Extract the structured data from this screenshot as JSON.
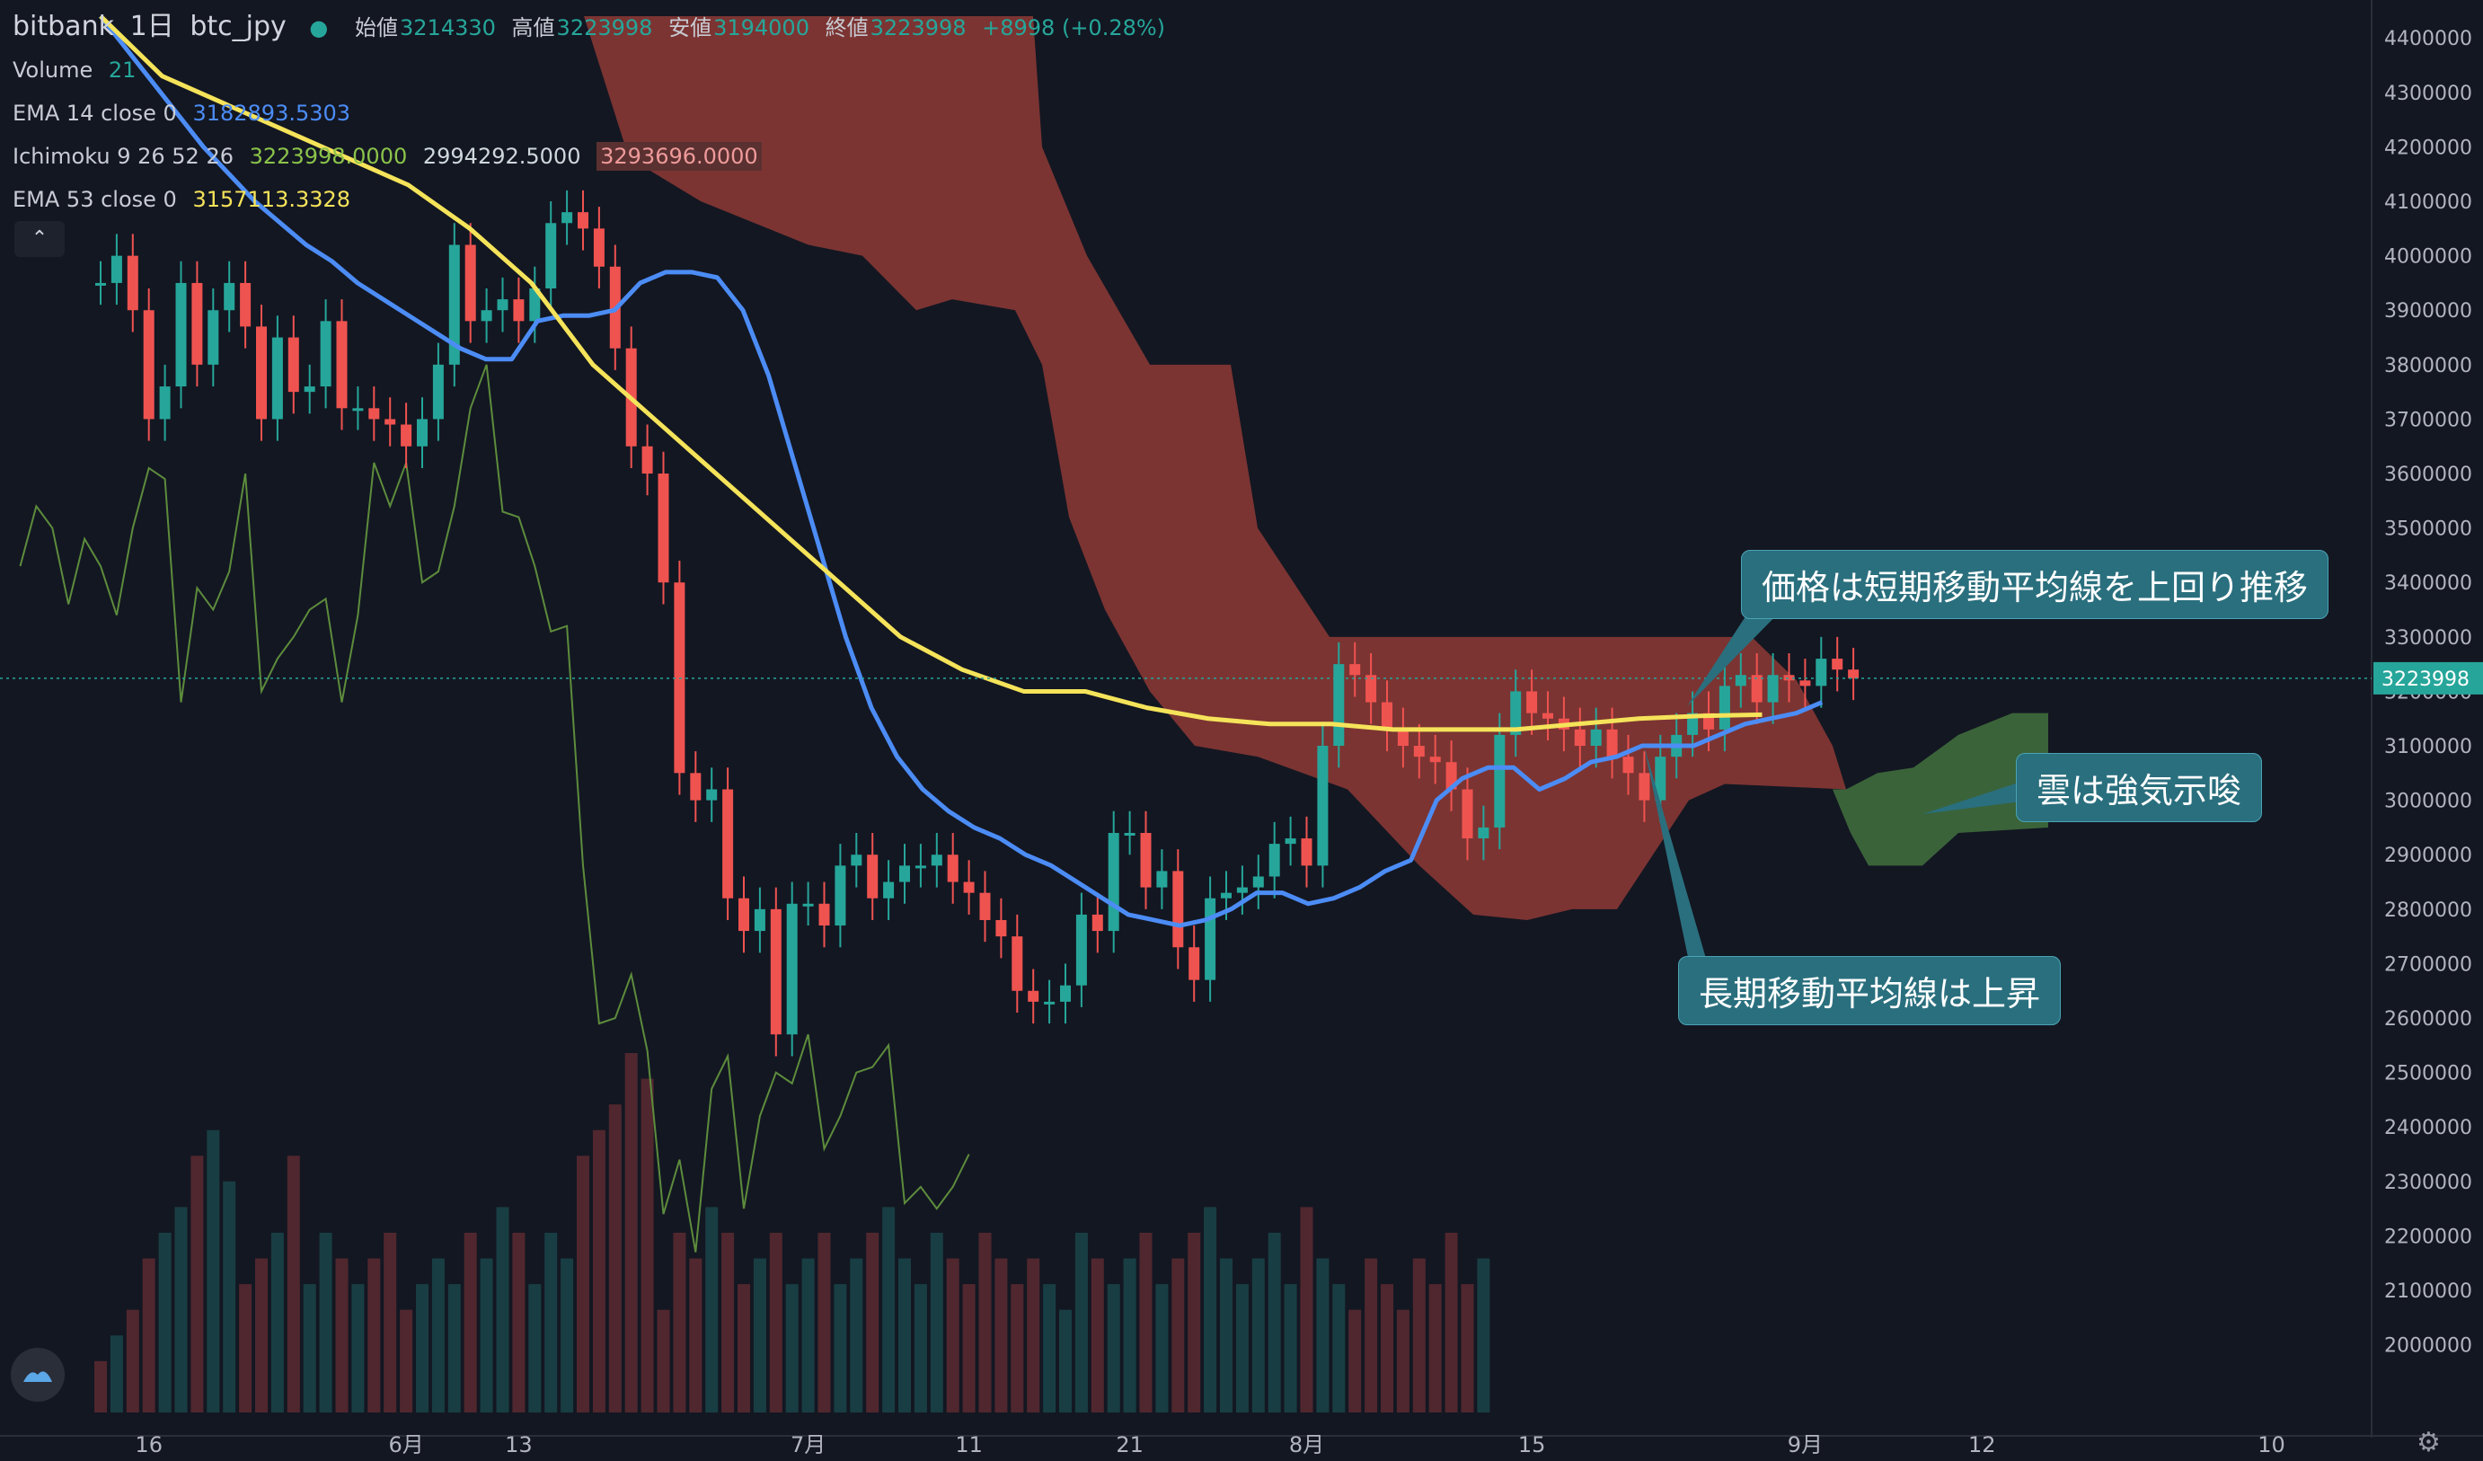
{
  "header": {
    "exchange": "bitbank",
    "interval": "1日",
    "symbol": "btc_jpy",
    "ohlc": {
      "open_label": "始値",
      "open": "3214330",
      "high_label": "高値",
      "high": "3223998",
      "low_label": "安値",
      "low": "3194000",
      "close_label": "終値",
      "close": "3223998",
      "change": "+8998 (+0.28%)"
    }
  },
  "indicators": {
    "volume": {
      "label": "Volume",
      "value": "21"
    },
    "ema14": {
      "label": "EMA 14 close 0",
      "value": "3182893.5303"
    },
    "ichimoku": {
      "label": "Ichimoku 9 26 52 26",
      "v1": "3223998.0000",
      "v2": "2994292.5000",
      "v3": "3293696.0000"
    },
    "ema53": {
      "label": "EMA 53 close 0",
      "value": "3157113.3328"
    }
  },
  "annotations": {
    "price_above_short_ma": "価格は短期移動平均線を上回り推移",
    "cloud_bullish": "雲は強気示唆",
    "long_ma_rising": "長期移動平均線は上昇"
  },
  "colors": {
    "up": "#26a69a",
    "down": "#ef5350",
    "ema14": "#4c8cf5",
    "ema53": "#f5e35a",
    "cloud_bear": "#8e3a35",
    "cloud_bull": "#3f6b3c",
    "lagging": "#5d8c3c",
    "background": "#131722"
  },
  "chart_data": {
    "type": "candlestick",
    "price_axis": {
      "ticks": [
        2000000,
        2100000,
        2200000,
        2300000,
        2400000,
        2500000,
        2600000,
        2700000,
        2800000,
        2900000,
        3000000,
        3100000,
        3200000,
        3300000,
        3400000,
        3500000,
        3600000,
        3700000,
        3800000,
        3900000,
        4000000,
        4100000,
        4200000,
        4300000,
        4400000
      ],
      "range": [
        1940000,
        4440000
      ]
    },
    "current_price": "3223998",
    "time_axis": {
      "ticks": [
        {
          "label": "16",
          "bar": 6
        },
        {
          "label": "6月",
          "bar": 22
        },
        {
          "label": "13",
          "bar": 29
        },
        {
          "label": "7月",
          "bar": 47
        },
        {
          "label": "11",
          "bar": 57
        },
        {
          "label": "21",
          "bar": 67
        },
        {
          "label": "8月",
          "bar": 78
        },
        {
          "label": "15",
          "bar": 92
        },
        {
          "label": "9月",
          "bar": 109
        },
        {
          "label": "12",
          "bar": 120
        },
        {
          "label": "10",
          "bar": 138
        }
      ],
      "bar_count_visible": 148
    },
    "candles_close": [
      3950000,
      4000000,
      3900000,
      3700000,
      3760000,
      3950000,
      3800000,
      3900000,
      3950000,
      3870000,
      3700000,
      3850000,
      3750000,
      3760000,
      3880000,
      3720000,
      3720000,
      3700000,
      3690000,
      3650000,
      3700000,
      3800000,
      4020000,
      3880000,
      3900000,
      3920000,
      3880000,
      3940000,
      4060000,
      4080000,
      4050000,
      3980000,
      3830000,
      3650000,
      3600000,
      3400000,
      3050000,
      3000000,
      3020000,
      2820000,
      2760000,
      2800000,
      2570000,
      2810000,
      2810000,
      2770000,
      2880000,
      2900000,
      2820000,
      2850000,
      2880000,
      2880000,
      2900000,
      2850000,
      2830000,
      2780000,
      2750000,
      2650000,
      2630000,
      2630000,
      2660000,
      2790000,
      2760000,
      2940000,
      2940000,
      2840000,
      2870000,
      2730000,
      2670000,
      2820000,
      2830000,
      2840000,
      2860000,
      2920000,
      2930000,
      2880000,
      3100000,
      3250000,
      3230000,
      3180000,
      3130000,
      3100000,
      3080000,
      3070000,
      3020000,
      2930000,
      2950000,
      3120000,
      3200000,
      3160000,
      3150000,
      3130000,
      3100000,
      3130000,
      3080000,
      3050000,
      3000000,
      3080000,
      3120000,
      3160000,
      3130000,
      3210000,
      3230000,
      3180000,
      3230000,
      3220000,
      3210000,
      3260000,
      3240000,
      3223998
    ],
    "ema14": [
      4440000,
      4380000,
      4320000,
      4260000,
      4200000,
      4150000,
      4100000,
      4060000,
      4020000,
      3990000,
      3950000,
      3920000,
      3890000,
      3860000,
      3830000,
      3810000,
      3810000,
      3880000,
      3890000,
      3890000,
      3900000,
      3950000,
      3970000,
      3970000,
      3960000,
      3900000,
      3780000,
      3620000,
      3460000,
      3300000,
      3170000,
      3080000,
      3020000,
      2980000,
      2950000,
      2930000,
      2900000,
      2880000,
      2850000,
      2820000,
      2790000,
      2780000,
      2770000,
      2780000,
      2800000,
      2830000,
      2830000,
      2810000,
      2820000,
      2840000,
      2870000,
      2890000,
      3000000,
      3040000,
      3060000,
      3060000,
      3020000,
      3040000,
      3070000,
      3080000,
      3100000,
      3100000,
      3100000,
      3120000,
      3140000,
      3150000,
      3160000,
      3180000
    ],
    "ema53": [
      4440000,
      4330000,
      4280000,
      4230000,
      4180000,
      4130000,
      4050000,
      3950000,
      3800000,
      3700000,
      3600000,
      3500000,
      3400000,
      3300000,
      3240000,
      3200000,
      3200000,
      3170000,
      3150000,
      3140000,
      3140000,
      3130000,
      3130000,
      3130000,
      3140000,
      3150000,
      3155000,
      3157113
    ],
    "volume": [
      4,
      6,
      8,
      12,
      14,
      16,
      20,
      22,
      18,
      10,
      12,
      14,
      20,
      10,
      14,
      12,
      10,
      12,
      14,
      8,
      10,
      12,
      10,
      14,
      12,
      16,
      14,
      10,
      14,
      12,
      20,
      22,
      24,
      28,
      26,
      8,
      14,
      12,
      16,
      14,
      10,
      12,
      14,
      10,
      12,
      14,
      10,
      12,
      14,
      16,
      12,
      10,
      14,
      12,
      10,
      14,
      12,
      10,
      12,
      10,
      8,
      14,
      12,
      10,
      12,
      14,
      10,
      12,
      14,
      16,
      12,
      10,
      12,
      14,
      10,
      16,
      12,
      10,
      8,
      12,
      10,
      8,
      12,
      10,
      14,
      10,
      12
    ]
  }
}
